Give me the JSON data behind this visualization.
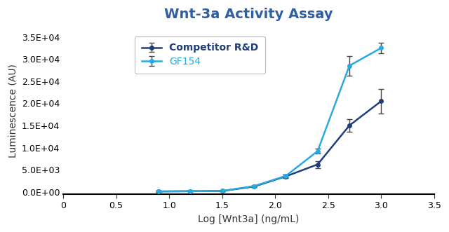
{
  "title": "Wnt-3a Activity Assay",
  "title_color": "#2E5FA3",
  "xlabel": "Log [Wnt3a] (ng/mL)",
  "ylabel": "Luminescence (AU)",
  "xlim": [
    0,
    3.5
  ],
  "ylim": [
    -500,
    37000
  ],
  "background_color": "#ffffff",
  "series": [
    {
      "label": "Competitor R&D",
      "color": "#1F3F7A",
      "x": [
        0.9,
        1.2,
        1.5,
        1.8,
        2.1,
        2.4,
        2.7,
        3.0
      ],
      "y": [
        100,
        150,
        200,
        1200,
        3500,
        6200,
        15000,
        20500
      ],
      "yerr": [
        100,
        100,
        100,
        200,
        400,
        800,
        1500,
        2800
      ]
    },
    {
      "label": "GF154",
      "color": "#27AAE1",
      "x": [
        0.9,
        1.2,
        1.5,
        1.8,
        2.1,
        2.4,
        2.7,
        3.0
      ],
      "y": [
        100,
        150,
        200,
        1300,
        3600,
        9200,
        28500,
        32500
      ],
      "yerr": [
        100,
        100,
        100,
        150,
        350,
        600,
        2200,
        1200
      ]
    }
  ],
  "legend_fontsize": 10,
  "axis_fontsize": 10,
  "title_fontsize": 14,
  "tick_fontsize": 9,
  "yticks": [
    0,
    5000,
    10000,
    15000,
    20000,
    25000,
    30000,
    35000
  ],
  "ytick_labels": [
    "0.0E+00",
    "5.0E+03",
    "1.0E+04",
    "1.5E+04",
    "2.0E+04",
    "2.5E+04",
    "3.0E+04",
    "3.5E+04"
  ],
  "xticks": [
    0,
    0.5,
    1.0,
    1.5,
    2.0,
    2.5,
    3.0,
    3.5
  ]
}
